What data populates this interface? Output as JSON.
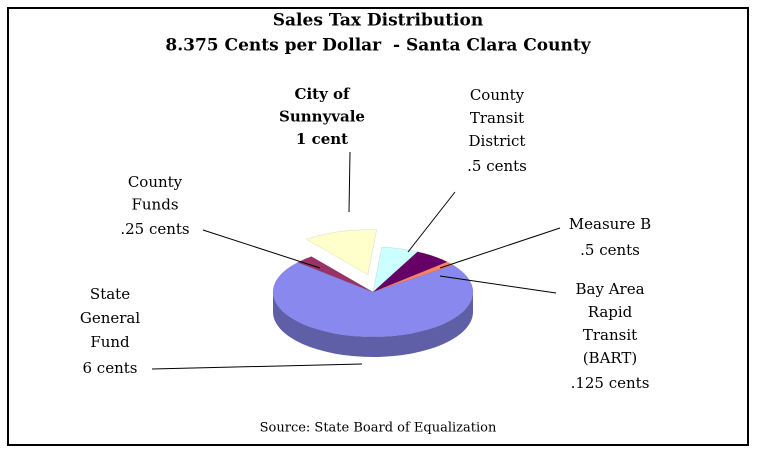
{
  "chart_data": {
    "type": "pie",
    "title": "Sales Tax Distribution",
    "subtitle": "8.375 Cents per Dollar  - Santa Clara County",
    "source": "Source: State Board of Equalization",
    "categories": [
      "City of Sunnyvale",
      "County Transit District",
      "Measure B",
      "Bay Area Rapid Transit (BART)",
      "State General Fund",
      "County Funds"
    ],
    "values": [
      1,
      0.5,
      0.5,
      0.125,
      6,
      0.25
    ],
    "value_labels": [
      "1 cent",
      ".5 cents",
      ".5 cents",
      ".125 cents",
      "6 cents",
      ".25 cents"
    ],
    "colors": [
      "#ffffcc",
      "#ccffff",
      "#660066",
      "#ff8060",
      "#8888ee",
      "#993366"
    ]
  }
}
